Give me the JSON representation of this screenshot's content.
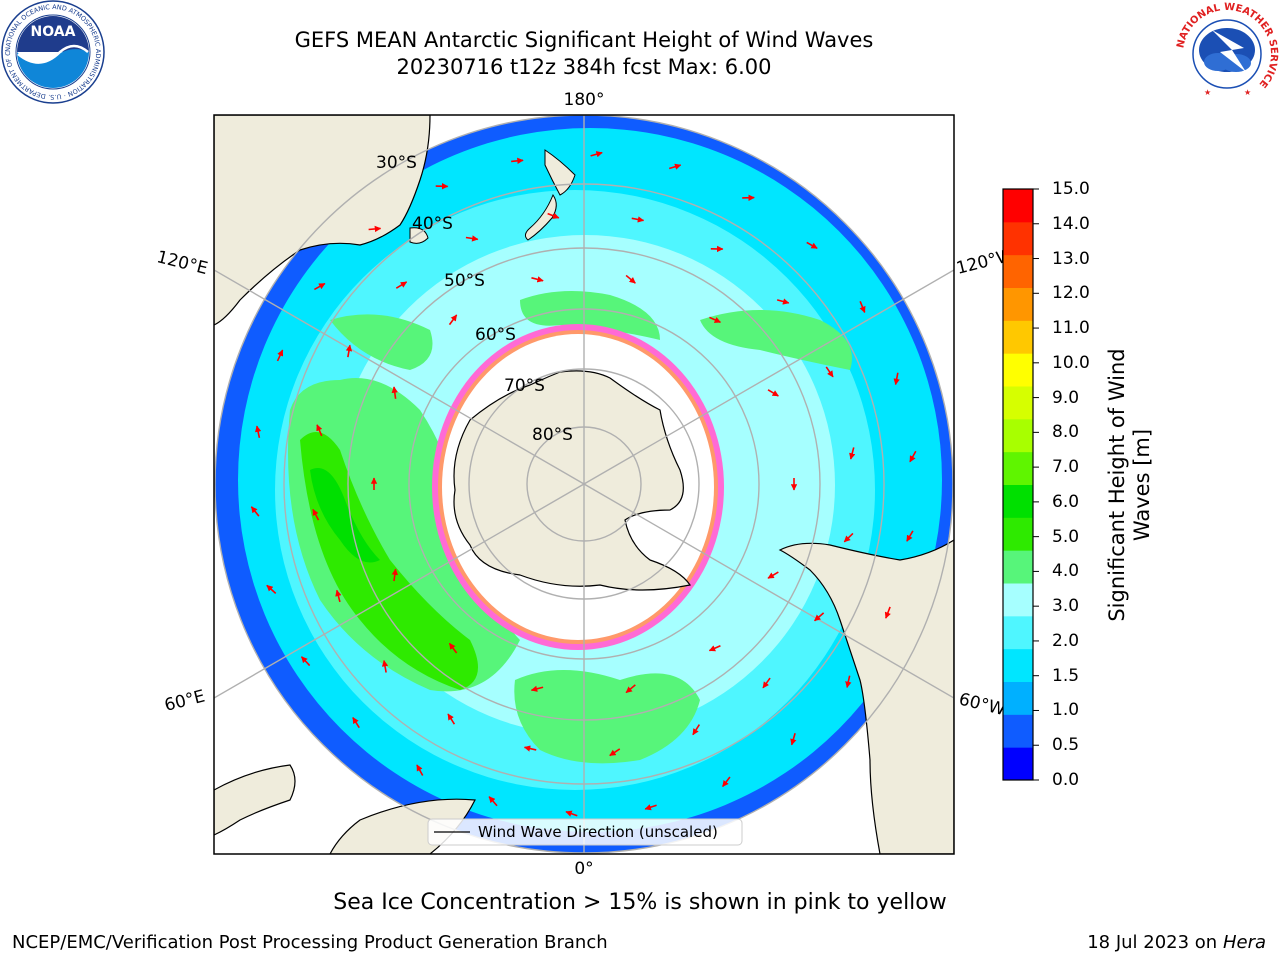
{
  "title": {
    "line1": "GEFS MEAN Antarctic Significant Height of Wind Waves",
    "line2": "20230716 t12z 384h fcst   Max: 6.00"
  },
  "map": {
    "projection": "south-polar stereographic",
    "longitude_labels": {
      "top": "180°",
      "bottom": "0°",
      "upper_left": "120°E",
      "lower_left": "60°E",
      "upper_right": "120°W",
      "lower_right": "60°W"
    },
    "latitude_labels": [
      "30°S",
      "40°S",
      "50°S",
      "60°S",
      "70°S",
      "80°S"
    ],
    "legend_label": "Wind Wave Direction (unscaled)",
    "arrow_color": "#ff0000",
    "land_color": "#efecdc"
  },
  "colorbar": {
    "label": "Significant Height of Wind Waves [m]",
    "ticks": [
      "0.0",
      "0.5",
      "1.0",
      "1.5",
      "2.0",
      "3.0",
      "4.0",
      "5.0",
      "6.0",
      "7.0",
      "8.0",
      "9.0",
      "10.0",
      "11.0",
      "12.0",
      "13.0",
      "14.0",
      "15.0"
    ],
    "colors": [
      "#0000ff",
      "#0f5cff",
      "#00b0ff",
      "#00e6ff",
      "#4ff6ff",
      "#a6ffff",
      "#57f57a",
      "#2eea00",
      "#00e000",
      "#5ff500",
      "#a8ff00",
      "#d6ff00",
      "#ffff00",
      "#ffc800",
      "#ff9600",
      "#ff6400",
      "#ff3200",
      "#ff0000"
    ]
  },
  "caption": "Sea Ice Concentration > 15% is shown in pink to yellow",
  "footer": {
    "left": "NCEP/EMC/Verification Post Processing Product Generation Branch",
    "date": "18 Jul 2023 on ",
    "machine": "Hera"
  },
  "logos": {
    "noaa": "NOAA",
    "noaa_ring": "NATIONAL OCEANIC AND ATMOSPHERIC ADMINISTRATION · U.S. DEPARTMENT OF COMMERCE",
    "nws_ring": "NATIONAL WEATHER SERVICE"
  }
}
